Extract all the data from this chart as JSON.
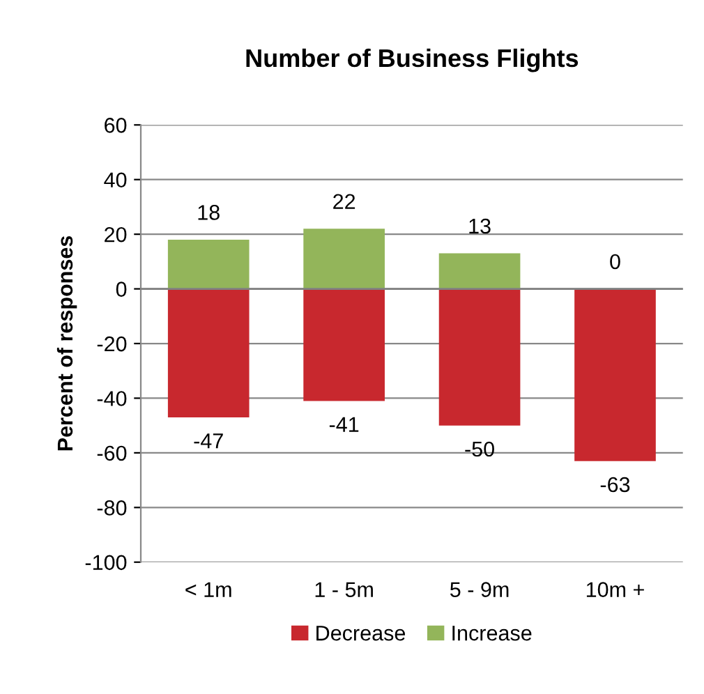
{
  "chart_data": {
    "type": "bar",
    "title": "Number of Business Flights",
    "ylabel": "Percent of responses",
    "categories": [
      "< 1m",
      "1 - 5m",
      "5 - 9m",
      "10m +"
    ],
    "series": [
      {
        "name": "Decrease",
        "color": "#c8282e",
        "values": [
          -47,
          -41,
          -50,
          -63
        ]
      },
      {
        "name": "Increase",
        "color": "#93b55a",
        "values": [
          18,
          22,
          13,
          0
        ]
      }
    ],
    "stacked": true,
    "ylim": [
      -100,
      60
    ],
    "yticks": [
      -100,
      -80,
      -60,
      -40,
      -20,
      0,
      20,
      40,
      60
    ],
    "grid": "y",
    "legend": "bottom",
    "data_labels": true
  }
}
